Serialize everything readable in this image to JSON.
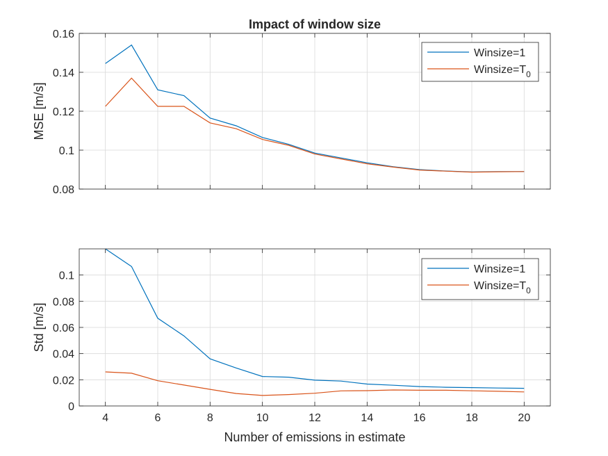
{
  "colors": {
    "series_1": "#0072BD",
    "series_2": "#D95319",
    "grid": "#d9d9d9",
    "axis": "#262626"
  },
  "chart_data": [
    {
      "type": "line",
      "title": "Impact of window size",
      "xlabel": "",
      "ylabel": "MSE [m/s]",
      "xlim": [
        3,
        21
      ],
      "ylim": [
        0.08,
        0.16
      ],
      "xticks": [
        4,
        6,
        8,
        10,
        12,
        14,
        16,
        18,
        20
      ],
      "xtick_labels_visible": false,
      "yticks": [
        0.08,
        0.1,
        0.12,
        0.14,
        0.16
      ],
      "ytick_labels": [
        "0.08",
        "0.1",
        "0.12",
        "0.14",
        "0.16"
      ],
      "grid": true,
      "legend_position": "top-right",
      "x": [
        4,
        5,
        6,
        7,
        8,
        9,
        10,
        11,
        12,
        13,
        14,
        15,
        16,
        17,
        18,
        19,
        20
      ],
      "series": [
        {
          "name": "Winsize=1",
          "legend_main": "Winsize=1",
          "legend_sub": "",
          "values": [
            0.1445,
            0.154,
            0.131,
            0.128,
            0.1165,
            0.1125,
            0.1065,
            0.103,
            0.0985,
            0.096,
            0.0935,
            0.0915,
            0.09,
            0.0893,
            0.0888,
            0.089,
            0.089
          ]
        },
        {
          "name": "Winsize=T0",
          "legend_main": "Winsize=T",
          "legend_sub": "0",
          "values": [
            0.1225,
            0.137,
            0.1225,
            0.1225,
            0.114,
            0.111,
            0.1055,
            0.1025,
            0.098,
            0.0955,
            0.093,
            0.0913,
            0.0898,
            0.0892,
            0.0887,
            0.0889,
            0.089
          ]
        }
      ]
    },
    {
      "type": "line",
      "title": "",
      "xlabel": "Number of emissions in estimate",
      "ylabel": "Std [m/s]",
      "xlim": [
        3,
        21
      ],
      "ylim": [
        0,
        0.12
      ],
      "xticks": [
        4,
        6,
        8,
        10,
        12,
        14,
        16,
        18,
        20
      ],
      "xtick_labels": [
        "4",
        "6",
        "8",
        "10",
        "12",
        "14",
        "16",
        "18",
        "20"
      ],
      "yticks": [
        0,
        0.02,
        0.04,
        0.06,
        0.08,
        0.1
      ],
      "ytick_labels": [
        "0",
        "0.02",
        "0.04",
        "0.06",
        "0.08",
        "0.1"
      ],
      "grid": true,
      "legend_position": "top-right",
      "x": [
        4,
        5,
        6,
        7,
        8,
        9,
        10,
        11,
        12,
        13,
        14,
        15,
        16,
        17,
        18,
        19,
        20
      ],
      "series": [
        {
          "name": "Winsize=1",
          "legend_main": "Winsize=1",
          "legend_sub": "",
          "values": [
            0.12,
            0.1065,
            0.067,
            0.0535,
            0.036,
            0.029,
            0.0225,
            0.022,
            0.0197,
            0.019,
            0.0167,
            0.0158,
            0.0148,
            0.0143,
            0.014,
            0.0137,
            0.0135
          ]
        },
        {
          "name": "Winsize=T0",
          "legend_main": "Winsize=T",
          "legend_sub": "0",
          "values": [
            0.026,
            0.025,
            0.0193,
            0.016,
            0.0127,
            0.0095,
            0.008,
            0.0087,
            0.0097,
            0.0115,
            0.0117,
            0.0122,
            0.012,
            0.012,
            0.0116,
            0.0112,
            0.0107
          ]
        }
      ]
    }
  ]
}
